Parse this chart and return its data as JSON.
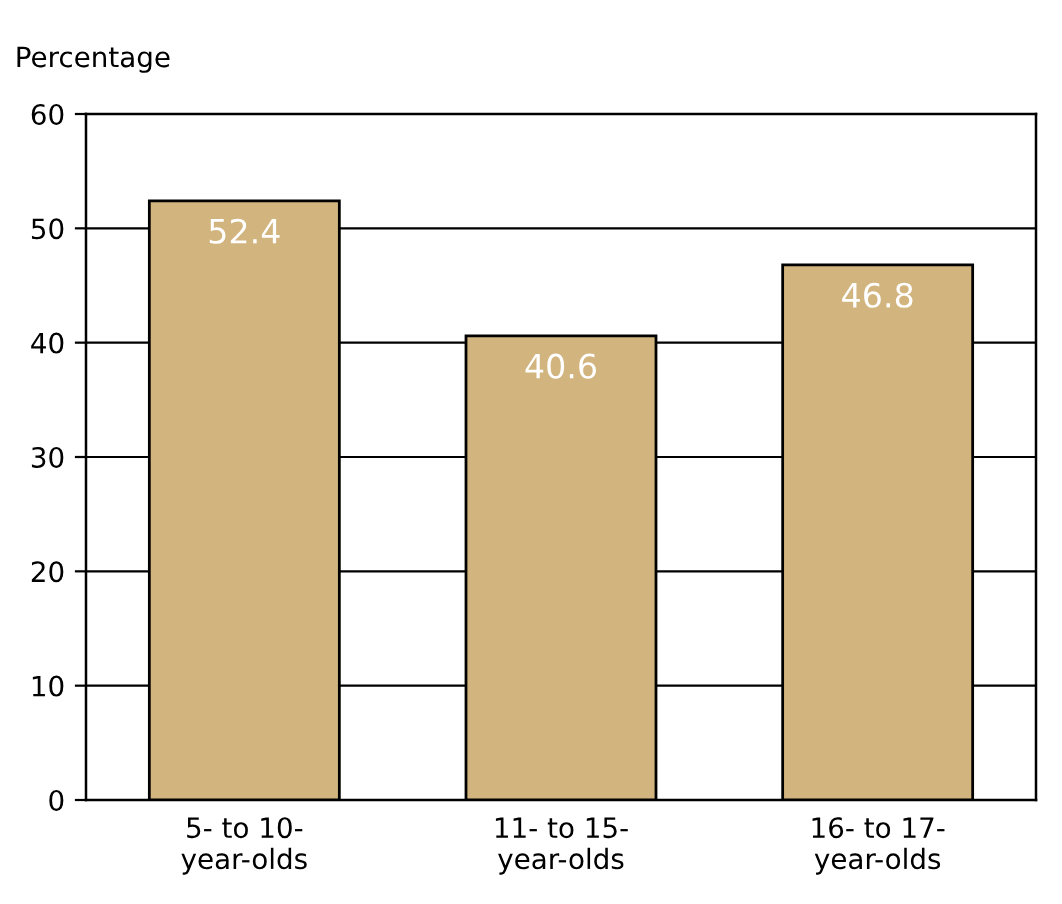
{
  "chart_data": {
    "type": "bar",
    "ylabel": "Percentage",
    "categories": [
      "5- to 10-\nyear-olds",
      "11- to 15-\nyear-olds",
      "16- to 17-\nyear-olds"
    ],
    "values": [
      52.4,
      40.6,
      46.8
    ],
    "color": "#d2b47f",
    "ylim": [
      0,
      60
    ],
    "yticks": [
      0,
      10,
      20,
      30,
      40,
      50,
      60
    ],
    "grid": "y",
    "data_labels": true,
    "legend": false
  }
}
